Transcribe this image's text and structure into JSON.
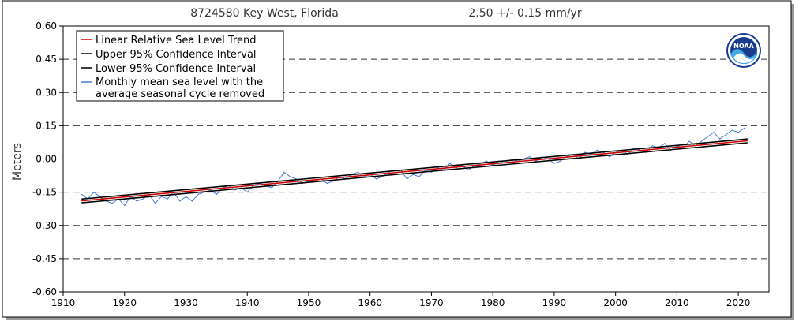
{
  "chart_data": {
    "type": "line",
    "title": "8724580 Key West, Florida",
    "trend_text": "2.50 +/-  0.15 mm/yr",
    "ylabel": "Meters",
    "xlabel": "",
    "xlim": [
      1910,
      2025
    ],
    "ylim": [
      -0.6,
      0.6
    ],
    "x_ticks": [
      1910,
      1920,
      1930,
      1940,
      1950,
      1960,
      1970,
      1980,
      1990,
      2000,
      2010,
      2020
    ],
    "x_tick_labels": [
      "1910",
      "1920",
      "1930",
      "1940",
      "1950",
      "1960",
      "1970",
      "1980",
      "1990",
      "2000",
      "2010",
      "2020"
    ],
    "y_ticks": [
      0.6,
      0.45,
      0.3,
      0.15,
      0.0,
      -0.15,
      -0.3,
      -0.45,
      -0.6
    ],
    "y_tick_labels": [
      "0.60",
      "0.45",
      "0.30",
      "0.15",
      "0.00",
      "-0.15",
      "-0.30",
      "-0.45",
      "-0.60"
    ],
    "grid": "dashed horizontal lines at y ticks",
    "legend_position": "top-left",
    "logo": "NOAA",
    "legend": [
      {
        "label": "Linear Relative Sea Level Trend",
        "color": "#cc0000"
      },
      {
        "label": "Upper 95% Confidence Interval",
        "color": "#000000"
      },
      {
        "label": "Lower 95% Confidence Interval",
        "color": "#000000"
      },
      {
        "label": "Monthly mean sea level with the",
        "label2": "average seasonal cycle removed",
        "color": "#4a78d6"
      }
    ],
    "series": [
      {
        "name": "Linear Relative Sea Level Trend",
        "color": "#cc0000",
        "x": [
          1913,
          2021.5
        ],
        "values": [
          -0.189,
          0.082
        ]
      },
      {
        "name": "Upper 95% Confidence Interval",
        "color": "#000000",
        "x": [
          1913,
          2021.5
        ],
        "values": [
          -0.181,
          0.09
        ]
      },
      {
        "name": "Lower 95% Confidence Interval",
        "color": "#000000",
        "x": [
          1913,
          2021.5
        ],
        "values": [
          -0.198,
          0.073
        ]
      },
      {
        "name": "Monthly mean sea level with the average seasonal cycle removed",
        "color": "#4a78d6",
        "x": [
          1913,
          1914,
          1915,
          1916,
          1917,
          1918,
          1919,
          1920,
          1921,
          1922,
          1923,
          1924,
          1925,
          1926,
          1927,
          1928,
          1929,
          1930,
          1931,
          1932,
          1933,
          1934,
          1935,
          1936,
          1937,
          1938,
          1939,
          1940,
          1941,
          1942,
          1943,
          1944,
          1945,
          1946,
          1947,
          1948,
          1949,
          1950,
          1951,
          1952,
          1953,
          1954,
          1955,
          1956,
          1957,
          1958,
          1959,
          1960,
          1961,
          1962,
          1963,
          1964,
          1965,
          1966,
          1967,
          1968,
          1969,
          1970,
          1971,
          1972,
          1973,
          1974,
          1975,
          1976,
          1977,
          1978,
          1979,
          1980,
          1981,
          1982,
          1983,
          1984,
          1985,
          1986,
          1987,
          1988,
          1989,
          1990,
          1991,
          1992,
          1993,
          1994,
          1995,
          1996,
          1997,
          1998,
          1999,
          2000,
          2001,
          2002,
          2003,
          2004,
          2005,
          2006,
          2007,
          2008,
          2009,
          2010,
          2011,
          2012,
          2013,
          2014,
          2015,
          2016,
          2017,
          2018,
          2019,
          2020,
          2021
        ],
        "values": [
          -0.16,
          -0.18,
          -0.15,
          -0.17,
          -0.19,
          -0.2,
          -0.18,
          -0.21,
          -0.17,
          -0.19,
          -0.18,
          -0.16,
          -0.2,
          -0.17,
          -0.18,
          -0.15,
          -0.19,
          -0.17,
          -0.19,
          -0.16,
          -0.15,
          -0.14,
          -0.16,
          -0.13,
          -0.12,
          -0.14,
          -0.13,
          -0.15,
          -0.12,
          -0.11,
          -0.12,
          -0.13,
          -0.1,
          -0.06,
          -0.08,
          -0.09,
          -0.11,
          -0.1,
          -0.1,
          -0.09,
          -0.11,
          -0.1,
          -0.08,
          -0.09,
          -0.07,
          -0.06,
          -0.08,
          -0.07,
          -0.09,
          -0.08,
          -0.06,
          -0.07,
          -0.05,
          -0.09,
          -0.07,
          -0.08,
          -0.05,
          -0.06,
          -0.04,
          -0.05,
          -0.02,
          -0.04,
          -0.03,
          -0.05,
          -0.03,
          -0.02,
          -0.01,
          -0.03,
          -0.01,
          -0.02,
          0.0,
          -0.01,
          0.0,
          0.01,
          -0.01,
          0.01,
          0.0,
          -0.02,
          -0.01,
          0.01,
          0.02,
          0.0,
          0.03,
          0.02,
          0.04,
          0.03,
          0.01,
          0.03,
          0.04,
          0.02,
          0.05,
          0.04,
          0.03,
          0.06,
          0.05,
          0.07,
          0.04,
          0.06,
          0.05,
          0.08,
          0.06,
          0.08,
          0.1,
          0.12,
          0.09,
          0.11,
          0.13,
          0.12,
          0.14
        ]
      }
    ]
  }
}
